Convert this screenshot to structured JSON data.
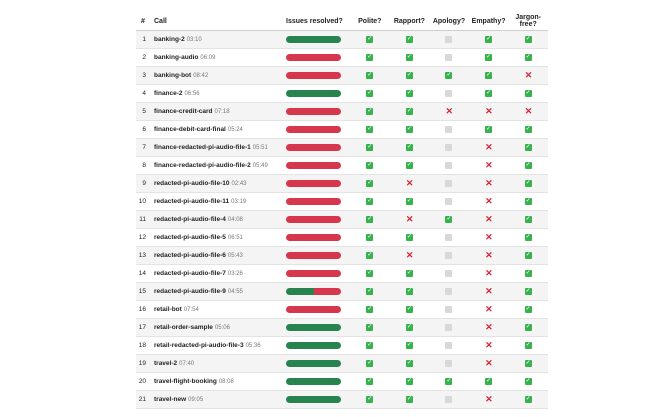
{
  "headers": {
    "num": "#",
    "call": "Call",
    "resolved": "Issues resolved?",
    "polite": "Polite?",
    "rapport": "Rapport?",
    "apology": "Apology?",
    "empathy": "Empathy?",
    "jargon": "Jargon-free?"
  },
  "rows": [
    {
      "num": "1",
      "name": "banking-2",
      "dur": "03:10",
      "resolved": 1.0,
      "polite": "yes",
      "rapport": "yes",
      "apology": "na",
      "empathy": "yes",
      "jargon": "yes"
    },
    {
      "num": "2",
      "name": "banking-audio",
      "dur": "06:09",
      "resolved": 0.0,
      "polite": "yes",
      "rapport": "yes",
      "apology": "na",
      "empathy": "yes",
      "jargon": "yes"
    },
    {
      "num": "3",
      "name": "banking-bot",
      "dur": "08:42",
      "resolved": 0.0,
      "polite": "yes",
      "rapport": "yes",
      "apology": "yes",
      "empathy": "yes",
      "jargon": "no"
    },
    {
      "num": "4",
      "name": "finance-2",
      "dur": "06:56",
      "resolved": 1.0,
      "polite": "yes",
      "rapport": "yes",
      "apology": "na",
      "empathy": "yes",
      "jargon": "yes"
    },
    {
      "num": "5",
      "name": "finance-credit-card",
      "dur": "07:18",
      "resolved": 0.0,
      "polite": "yes",
      "rapport": "yes",
      "apology": "no",
      "empathy": "no",
      "jargon": "no"
    },
    {
      "num": "6",
      "name": "finance-debit-card-final",
      "dur": "05:24",
      "resolved": 0.0,
      "polite": "yes",
      "rapport": "yes",
      "apology": "na",
      "empathy": "yes",
      "jargon": "yes"
    },
    {
      "num": "7",
      "name": "finance-redacted-pi-audio-file-1",
      "dur": "05:51",
      "resolved": 0.0,
      "polite": "yes",
      "rapport": "yes",
      "apology": "na",
      "empathy": "no",
      "jargon": "yes"
    },
    {
      "num": "8",
      "name": "finance-redacted-pi-audio-file-2",
      "dur": "05:49",
      "resolved": 0.0,
      "polite": "yes",
      "rapport": "yes",
      "apology": "na",
      "empathy": "no",
      "jargon": "yes"
    },
    {
      "num": "9",
      "name": "redacted-pi-audio-file-10",
      "dur": "02:43",
      "resolved": 0.0,
      "polite": "yes",
      "rapport": "no",
      "apology": "na",
      "empathy": "no",
      "jargon": "yes"
    },
    {
      "num": "10",
      "name": "redacted-pi-audio-file-11",
      "dur": "03:19",
      "resolved": 0.0,
      "polite": "yes",
      "rapport": "yes",
      "apology": "na",
      "empathy": "no",
      "jargon": "yes"
    },
    {
      "num": "11",
      "name": "redacted-pi-audio-file-4",
      "dur": "04:08",
      "resolved": 0.0,
      "polite": "yes",
      "rapport": "no",
      "apology": "yes",
      "empathy": "no",
      "jargon": "yes"
    },
    {
      "num": "12",
      "name": "redacted-pi-audio-file-5",
      "dur": "06:51",
      "resolved": 0.0,
      "polite": "yes",
      "rapport": "yes",
      "apology": "na",
      "empathy": "no",
      "jargon": "yes"
    },
    {
      "num": "13",
      "name": "redacted-pi-audio-file-6",
      "dur": "05:43",
      "resolved": 0.0,
      "polite": "yes",
      "rapport": "no",
      "apology": "na",
      "empathy": "no",
      "jargon": "yes"
    },
    {
      "num": "14",
      "name": "redacted-pi-audio-file-7",
      "dur": "03:26",
      "resolved": 0.0,
      "polite": "yes",
      "rapport": "yes",
      "apology": "na",
      "empathy": "no",
      "jargon": "yes"
    },
    {
      "num": "15",
      "name": "redacted-pi-audio-file-9",
      "dur": "04:55",
      "resolved": 0.5,
      "polite": "yes",
      "rapport": "yes",
      "apology": "na",
      "empathy": "no",
      "jargon": "yes"
    },
    {
      "num": "16",
      "name": "retail-bot",
      "dur": "07:54",
      "resolved": 0.0,
      "polite": "yes",
      "rapport": "yes",
      "apology": "na",
      "empathy": "no",
      "jargon": "yes"
    },
    {
      "num": "17",
      "name": "retail-order-sample",
      "dur": "05:06",
      "resolved": 1.0,
      "polite": "yes",
      "rapport": "yes",
      "apology": "na",
      "empathy": "no",
      "jargon": "yes"
    },
    {
      "num": "18",
      "name": "retail-redacted-pi-audio-file-3",
      "dur": "05:36",
      "resolved": 1.0,
      "polite": "yes",
      "rapport": "yes",
      "apology": "na",
      "empathy": "no",
      "jargon": "yes"
    },
    {
      "num": "19",
      "name": "travel-2",
      "dur": "07:40",
      "resolved": 1.0,
      "polite": "yes",
      "rapport": "yes",
      "apology": "na",
      "empathy": "no",
      "jargon": "yes"
    },
    {
      "num": "20",
      "name": "travel-flight-booking",
      "dur": "08:08",
      "resolved": 1.0,
      "polite": "yes",
      "rapport": "yes",
      "apology": "yes",
      "empathy": "yes",
      "jargon": "yes"
    },
    {
      "num": "21",
      "name": "travel-new",
      "dur": "09:05",
      "resolved": 1.0,
      "polite": "yes",
      "rapport": "yes",
      "apology": "na",
      "empathy": "no",
      "jargon": "yes"
    }
  ],
  "colors": {
    "resolved": "#28844f",
    "unresolved": "#d7374c",
    "check": "#37b24d",
    "cross": "#d52536",
    "na": "#d8d8d8"
  },
  "marks": {
    "yes": "✓",
    "no": "✕",
    "na": ""
  }
}
